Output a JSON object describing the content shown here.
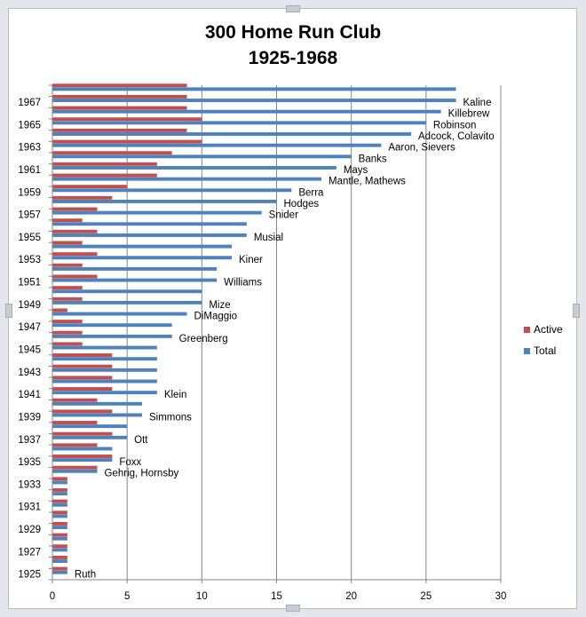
{
  "chart_data": {
    "type": "bar",
    "orientation": "horizontal",
    "title": [
      "300 Home Run Club",
      "1925-1968"
    ],
    "xlabel": "",
    "ylabel": "",
    "xlim": [
      0,
      30
    ],
    "xticks": [
      0,
      5,
      10,
      15,
      20,
      25,
      30
    ],
    "grid": "vertical",
    "legend_position": "right",
    "colors": {
      "Active": "#c0504d",
      "Total": "#4f81bd"
    },
    "categories": [
      1925,
      1926,
      1927,
      1928,
      1929,
      1930,
      1931,
      1932,
      1933,
      1934,
      1935,
      1936,
      1937,
      1938,
      1939,
      1940,
      1941,
      1942,
      1943,
      1944,
      1945,
      1946,
      1947,
      1948,
      1949,
      1950,
      1951,
      1952,
      1953,
      1954,
      1955,
      1956,
      1957,
      1958,
      1959,
      1960,
      1961,
      1962,
      1963,
      1964,
      1965,
      1966,
      1967,
      1968
    ],
    "year_labels": [
      "1925",
      "1927",
      "1929",
      "1931",
      "1933",
      "1935",
      "1937",
      "1939",
      "1941",
      "1943",
      "1945",
      "1947",
      "1949",
      "1951",
      "1953",
      "1955",
      "1957",
      "1959",
      "1961",
      "1963",
      "1965",
      "1967"
    ],
    "series": [
      {
        "name": "Active",
        "values": [
          1,
          1,
          1,
          1,
          1,
          1,
          1,
          1,
          1,
          3,
          4,
          3,
          4,
          3,
          4,
          3,
          4,
          4,
          4,
          4,
          2,
          2,
          2,
          1,
          2,
          2,
          3,
          2,
          3,
          2,
          3,
          2,
          3,
          4,
          5,
          7,
          7,
          8,
          10,
          9,
          10,
          9,
          9,
          9
        ]
      },
      {
        "name": "Total",
        "values": [
          1,
          1,
          1,
          1,
          1,
          1,
          1,
          1,
          1,
          3,
          4,
          4,
          5,
          5,
          6,
          6,
          7,
          7,
          7,
          7,
          7,
          8,
          8,
          9,
          10,
          10,
          11,
          11,
          12,
          12,
          13,
          13,
          14,
          15,
          16,
          18,
          19,
          20,
          22,
          24,
          25,
          26,
          27,
          27
        ]
      }
    ],
    "annotations": [
      {
        "year": 1925,
        "text": "Ruth"
      },
      {
        "year": 1934,
        "text": "Gehrig, Hornsby"
      },
      {
        "year": 1935,
        "text": "Foxx"
      },
      {
        "year": 1937,
        "text": "Ott"
      },
      {
        "year": 1939,
        "text": "Simmons"
      },
      {
        "year": 1941,
        "text": "Klein"
      },
      {
        "year": 1946,
        "text": "Greenberg"
      },
      {
        "year": 1948,
        "text": "DiMaggio"
      },
      {
        "year": 1949,
        "text": "Mize"
      },
      {
        "year": 1951,
        "text": "Williams"
      },
      {
        "year": 1953,
        "text": "Kiner"
      },
      {
        "year": 1955,
        "text": "Musial"
      },
      {
        "year": 1957,
        "text": "Snider"
      },
      {
        "year": 1958,
        "text": "Hodges"
      },
      {
        "year": 1959,
        "text": "Berra"
      },
      {
        "year": 1960,
        "text": "Mantle, Mathews"
      },
      {
        "year": 1961,
        "text": "Mays"
      },
      {
        "year": 1962,
        "text": "Banks"
      },
      {
        "year": 1963,
        "text": "Aaron, Sievers"
      },
      {
        "year": 1964,
        "text": "Adcock, Colavito"
      },
      {
        "year": 1965,
        "text": "Robinson"
      },
      {
        "year": 1966,
        "text": "Killebrew"
      },
      {
        "year": 1967,
        "text": "Kaline"
      }
    ]
  }
}
